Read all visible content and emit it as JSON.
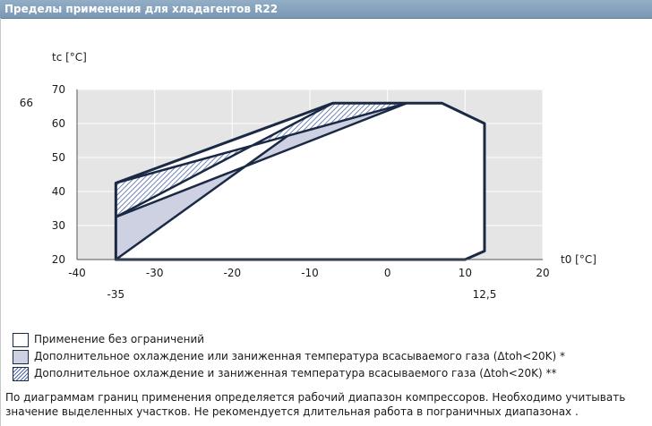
{
  "header": {
    "title": "Пределы применения для хладагентов R22"
  },
  "chart_data": {
    "type": "area",
    "ylabel": "tc [°C]",
    "xlabel": "t0 [°C]",
    "xlim": [
      -40,
      20
    ],
    "ylim": [
      20,
      70
    ],
    "xticks": [
      -40,
      -30,
      -20,
      -10,
      0,
      10,
      20
    ],
    "yticks": [
      20,
      30,
      40,
      50,
      60,
      70
    ],
    "extra_x_labels": [
      {
        "value": -35,
        "label": "-35"
      },
      {
        "value": 12.5,
        "label": "12,5"
      }
    ],
    "extra_y_labels": [
      {
        "value": 66,
        "label": "66"
      }
    ],
    "grid": true,
    "envelope": {
      "x": [
        -35,
        -35,
        -7,
        7,
        12.5,
        12.5,
        10,
        -35
      ],
      "y": [
        20,
        42.5,
        66,
        66,
        60,
        22.5,
        20,
        20
      ]
    },
    "regions": [
      {
        "style": "grey",
        "x": [
          -35,
          -35,
          2.5,
          -7
        ],
        "y": [
          20,
          32.5,
          66,
          66
        ]
      },
      {
        "style": "hatch",
        "x": [
          -35,
          -35,
          -7,
          2.5,
          -35
        ],
        "y": [
          42.5,
          32.5,
          66,
          66,
          42.5
        ]
      }
    ]
  },
  "legend": [
    {
      "style": "white",
      "label": "Применение без ограничений"
    },
    {
      "style": "grey",
      "label": "Дополнительное охлаждение или заниженная температура всасываемого газа (Δtoh<20K) *"
    },
    {
      "style": "hatch",
      "label": "Дополнительное охлаждение и заниженная температура всасываемого газа (Δtoh<20K) **"
    }
  ],
  "note": "По диаграммам границ применения определяется рабочий диапазон компрессоров. Необходимо учитывать значение выделенных участков. Не рекомендуется длительная работа в пограничных диапазонах .",
  "colors": {
    "plot_bg": "#e5e5e5",
    "grid": "#ffffff",
    "envelope_stroke": "#1a2a45",
    "grey_fill": "#cdd1e2",
    "hatch": "#4e67a8",
    "header_bg": "#7a97b4"
  }
}
